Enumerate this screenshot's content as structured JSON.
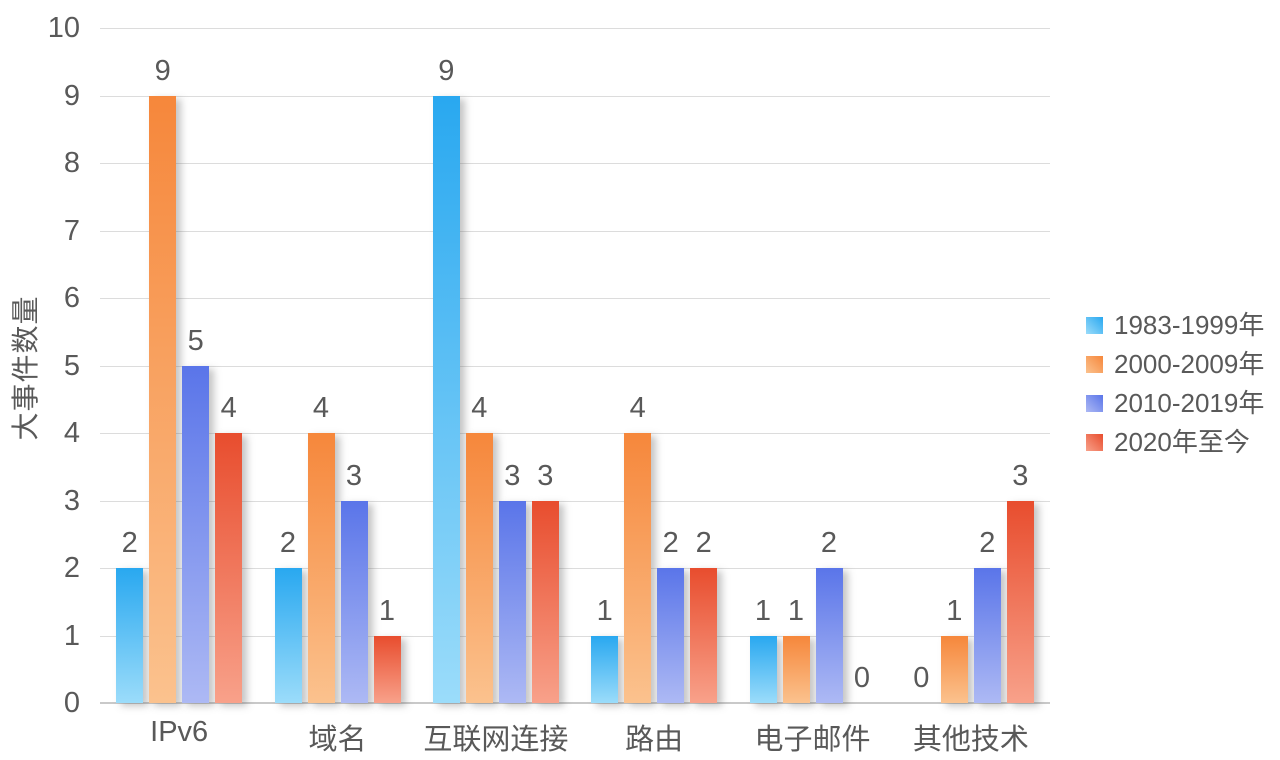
{
  "chart_data": {
    "type": "bar",
    "title": "",
    "xlabel": "",
    "ylabel": "大事件数量",
    "ylim": [
      0,
      10
    ],
    "ytick_step": 1,
    "yticks": [
      0,
      1,
      2,
      3,
      4,
      5,
      6,
      7,
      8,
      9,
      10
    ],
    "grid": true,
    "data_labels": true,
    "legend_position": "right",
    "categories": [
      "IPv6",
      "域名",
      "互联网连接",
      "路由",
      "电子邮件",
      "其他技术"
    ],
    "series": [
      {
        "name": "1983-1999年",
        "values": [
          2,
          2,
          9,
          1,
          1,
          0
        ],
        "color_top": "#29a8f0",
        "color_bottom": "#9bdcfa",
        "legend_color": "#4dc4f2"
      },
      {
        "name": "2000-2009年",
        "values": [
          9,
          4,
          4,
          4,
          1,
          1
        ],
        "color_top": "#f6873b",
        "color_bottom": "#fbc28e",
        "legend_color": "#f2903e"
      },
      {
        "name": "2010-2019年",
        "values": [
          5,
          3,
          3,
          2,
          2,
          2
        ],
        "color_top": "#5a75e9",
        "color_bottom": "#adb9f4",
        "legend_color": "#6b82ea"
      },
      {
        "name": "2020年至今",
        "values": [
          4,
          1,
          3,
          2,
          0,
          3
        ],
        "color_top": "#e84d2e",
        "color_bottom": "#f8a18a",
        "legend_color": "#ef5b3a"
      }
    ]
  },
  "style": {
    "text_color": "#595959",
    "gridline_color": "#dcdcdc",
    "baseline_color": "#c9c9c9",
    "background": "#ffffff"
  }
}
